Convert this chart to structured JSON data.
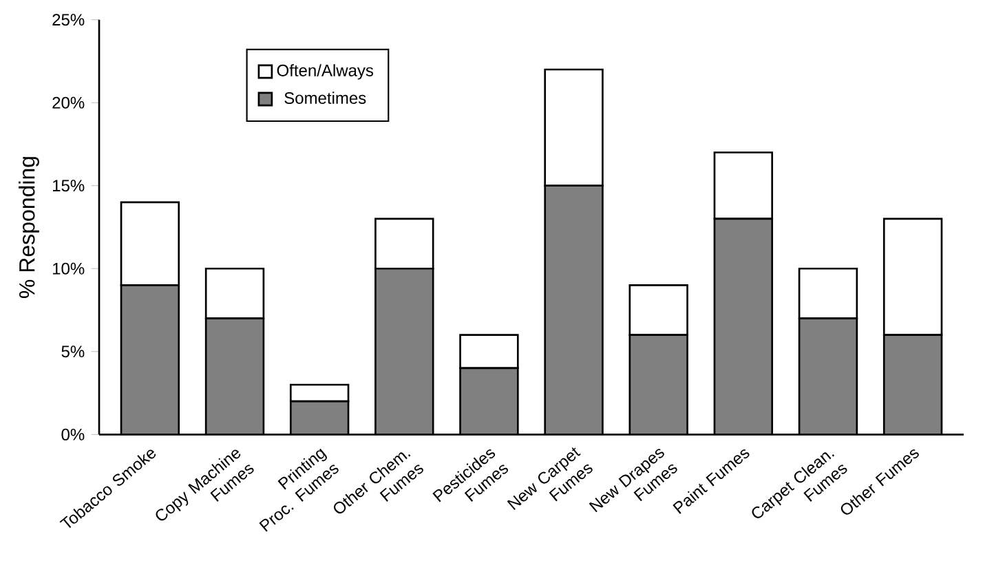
{
  "chart_data": {
    "type": "bar",
    "stacked": true,
    "ylabel": "% Responding",
    "categories": [
      "Tobacco Smoke",
      "Copy Machine Fumes",
      "Printing Proc. Fumes",
      "Other Chem. Fumes",
      "Pesticides Fumes",
      "New Carpet Fumes",
      "New Drapes Fumes",
      "Paint Fumes",
      "Carpet Clean. Fumes",
      "Other Fumes"
    ],
    "series": [
      {
        "name": "Sometimes",
        "color": "#808080",
        "values": [
          9,
          7,
          2,
          10,
          4,
          15,
          6,
          13,
          7,
          6
        ]
      },
      {
        "name": "Often/Always",
        "color": "#ffffff",
        "values": [
          5,
          3,
          1,
          3,
          2,
          7,
          3,
          4,
          3,
          7
        ]
      }
    ],
    "ylim": [
      0,
      25
    ],
    "yticks": [
      {
        "value": 0,
        "label": "0%"
      },
      {
        "value": 5,
        "label": "5%"
      },
      {
        "value": 10,
        "label": "10%"
      },
      {
        "value": 15,
        "label": "15%"
      },
      {
        "value": 20,
        "label": "20%"
      },
      {
        "value": 25,
        "label": "25%"
      }
    ],
    "legend": "top left"
  }
}
